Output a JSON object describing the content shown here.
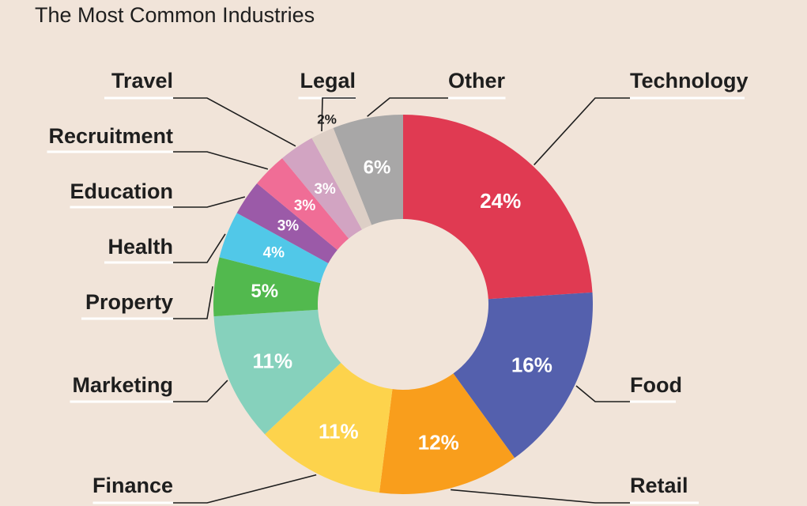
{
  "chart_data": {
    "type": "pie",
    "title": "The Most Common Industries",
    "categories": [
      "Technology",
      "Food",
      "Retail",
      "Finance",
      "Marketing",
      "Property",
      "Health",
      "Education",
      "Recruitment",
      "Travel",
      "Legal",
      "Other"
    ],
    "values": [
      24,
      16,
      12,
      11,
      11,
      5,
      4,
      3,
      3,
      3,
      2,
      6
    ],
    "value_labels": [
      "24%",
      "16%",
      "12%",
      "11%",
      "11%",
      "5%",
      "4%",
      "3%",
      "3%",
      "3%",
      "2%",
      "6%"
    ],
    "colors": [
      "#e03a52",
      "#5460ad",
      "#f99e1c",
      "#fdd34c",
      "#86d1bc",
      "#52b94e",
      "#51c8e8",
      "#9b5aa8",
      "#f06d96",
      "#d2a4c2",
      "#ddcfc6",
      "#a8a7a7"
    ],
    "donut": true
  }
}
